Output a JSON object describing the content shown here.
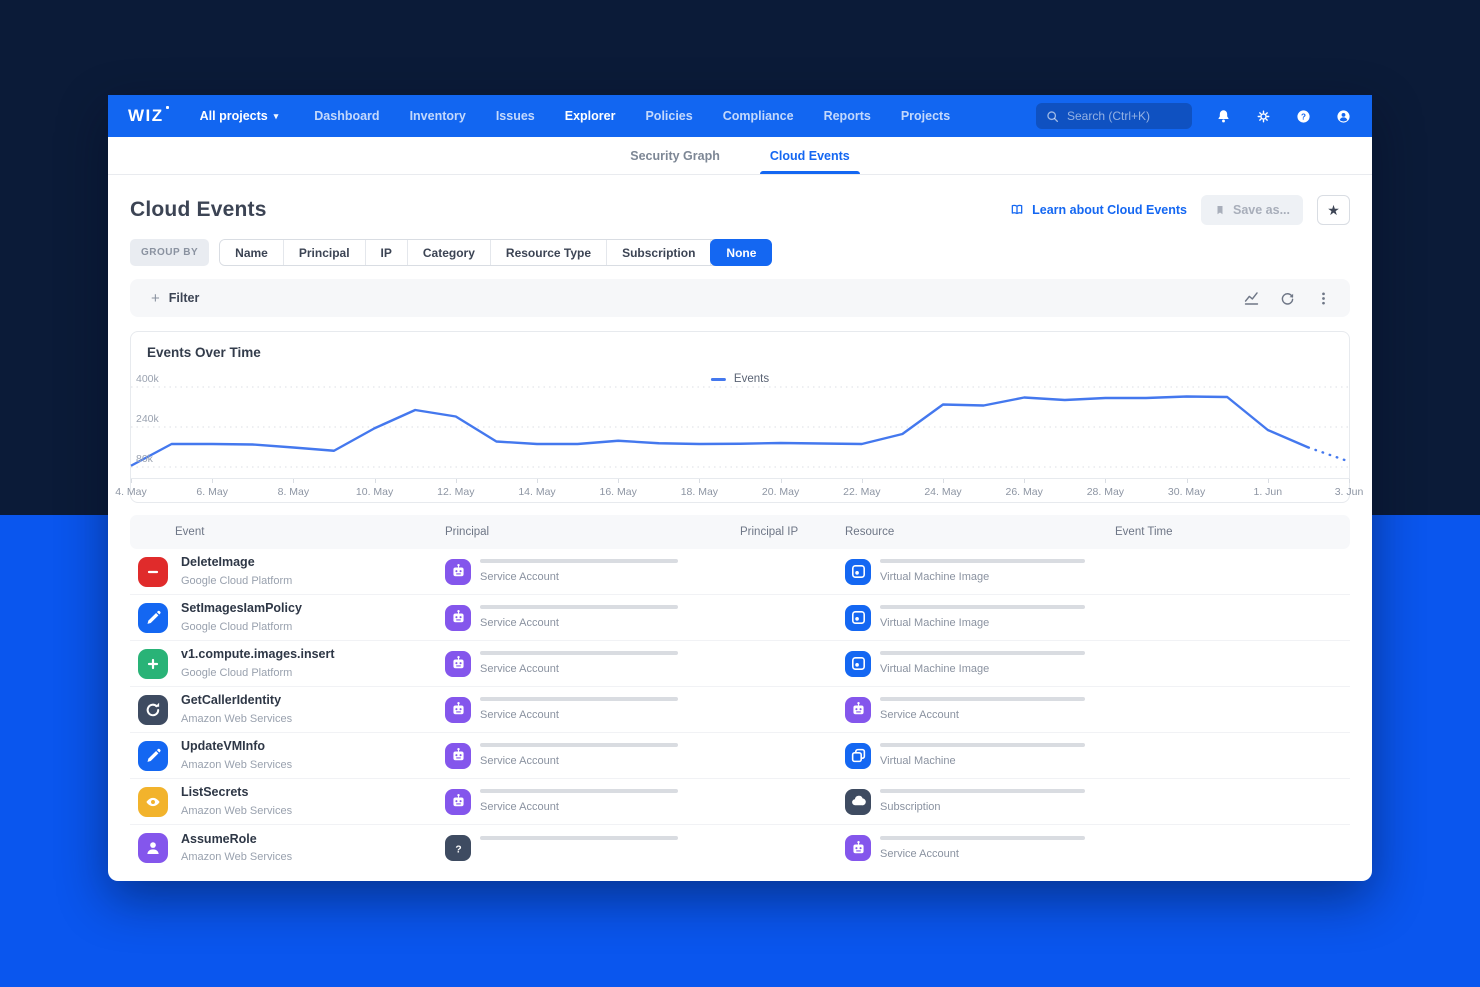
{
  "app": {
    "logo": "WIZ"
  },
  "nav": {
    "project_selector": "All projects",
    "items": [
      {
        "label": "Dashboard",
        "active": false
      },
      {
        "label": "Inventory",
        "active": false
      },
      {
        "label": "Issues",
        "active": false
      },
      {
        "label": "Explorer",
        "active": true
      },
      {
        "label": "Policies",
        "active": false
      },
      {
        "label": "Compliance",
        "active": false
      },
      {
        "label": "Reports",
        "active": false
      },
      {
        "label": "Projects",
        "active": false
      }
    ],
    "search_placeholder": "Search (Ctrl+K)",
    "right_icons": [
      "bell-icon",
      "gear-icon",
      "help-icon",
      "user-icon"
    ]
  },
  "tabs": {
    "items": [
      {
        "label": "Security Graph",
        "active": false
      },
      {
        "label": "Cloud Events",
        "active": true
      }
    ]
  },
  "header": {
    "title": "Cloud Events",
    "learn_link_label": "Learn about Cloud Events",
    "save_as_label": "Save as...",
    "favorite_icon": "star"
  },
  "group_by": {
    "label": "GROUP BY",
    "options": [
      {
        "label": "Name",
        "active": false
      },
      {
        "label": "Principal",
        "active": false
      },
      {
        "label": "IP",
        "active": false
      },
      {
        "label": "Category",
        "active": false
      },
      {
        "label": "Resource Type",
        "active": false
      },
      {
        "label": "Subscription",
        "active": false
      },
      {
        "label": "None",
        "active": true
      }
    ]
  },
  "filter_bar": {
    "add_filter_label": "Filter",
    "icons": [
      "chart-toggle-icon",
      "refresh-icon",
      "kebab-menu-icon"
    ]
  },
  "chart_data": {
    "type": "line",
    "title": "Events Over Time",
    "legend": [
      {
        "name": "Events",
        "color": "#4478ee"
      }
    ],
    "unit": "thousands of events",
    "x": [
      "4 May",
      "5 May",
      "6 May",
      "7 May",
      "8 May",
      "9 May",
      "10 May",
      "11 May",
      "12 May",
      "13 May",
      "14 May",
      "15 May",
      "16 May",
      "17 May",
      "18 May",
      "19 May",
      "20 May",
      "21 May",
      "22 May",
      "23 May",
      "24 May",
      "25 May",
      "26 May",
      "27 May",
      "28 May",
      "29 May",
      "30 May",
      "31 May",
      "1 Jun",
      "2 Jun",
      "3 Jun"
    ],
    "series": [
      {
        "name": "Events",
        "values": [
          85,
          172,
          172,
          170,
          158,
          145,
          235,
          308,
          282,
          182,
          172,
          172,
          185,
          175,
          172,
          173,
          176,
          174,
          172,
          212,
          330,
          326,
          358,
          348,
          356,
          356,
          362,
          360,
          228,
          158,
          102
        ]
      }
    ],
    "dashed_tail_points": 2,
    "x_tick_labels": [
      "4. May",
      "6. May",
      "8. May",
      "10. May",
      "12. May",
      "14. May",
      "16. May",
      "18. May",
      "20. May",
      "22. May",
      "24. May",
      "26. May",
      "28. May",
      "30. May",
      "1. Jun",
      "3. Jun"
    ],
    "y_ticks": [
      {
        "label": "400k",
        "value": 400
      },
      {
        "label": "240k",
        "value": 240
      },
      {
        "label": "80k",
        "value": 80
      }
    ],
    "ylim": [
      40,
      420
    ],
    "grid": "dotted-horizontal",
    "legend_position": "top-center"
  },
  "table": {
    "columns": [
      "Event",
      "Principal",
      "Principal IP",
      "Resource",
      "Event Time"
    ],
    "rows": [
      {
        "event": {
          "name": "DeleteImage",
          "provider": "Google Cloud Platform",
          "icon": "minus",
          "color": "#e02b2b"
        },
        "principal": {
          "icon": "service-account",
          "color": "#8456ec",
          "label": "Service Account"
        },
        "resource": {
          "icon": "vm-image",
          "color": "#1467f2",
          "label": "Virtual Machine Image"
        }
      },
      {
        "event": {
          "name": "SetImagesIamPolicy",
          "provider": "Google Cloud Platform",
          "icon": "pencil",
          "color": "#1467f2"
        },
        "principal": {
          "icon": "service-account",
          "color": "#8456ec",
          "label": "Service Account"
        },
        "resource": {
          "icon": "vm-image",
          "color": "#1467f2",
          "label": "Virtual Machine Image"
        }
      },
      {
        "event": {
          "name": "v1.compute.images.insert",
          "provider": "Google Cloud Platform",
          "icon": "plus",
          "color": "#29b377"
        },
        "principal": {
          "icon": "service-account",
          "color": "#8456ec",
          "label": "Service Account"
        },
        "resource": {
          "icon": "vm-image",
          "color": "#1467f2",
          "label": "Virtual Machine Image"
        }
      },
      {
        "event": {
          "name": "GetCallerIdentity",
          "provider": "Amazon Web Services",
          "icon": "identity",
          "color": "#3e4b61"
        },
        "principal": {
          "icon": "service-account",
          "color": "#8456ec",
          "label": "Service Account"
        },
        "resource": {
          "icon": "service-account",
          "color": "#8456ec",
          "label": "Service Account"
        }
      },
      {
        "event": {
          "name": "UpdateVMInfo",
          "provider": "Amazon Web Services",
          "icon": "pencil",
          "color": "#1467f2"
        },
        "principal": {
          "icon": "service-account",
          "color": "#8456ec",
          "label": "Service Account"
        },
        "resource": {
          "icon": "virtual-machine",
          "color": "#1467f2",
          "label": "Virtual Machine"
        }
      },
      {
        "event": {
          "name": "ListSecrets",
          "provider": "Amazon Web Services",
          "icon": "eye",
          "color": "#f2b32c"
        },
        "principal": {
          "icon": "service-account",
          "color": "#8456ec",
          "label": "Service Account"
        },
        "resource": {
          "icon": "subscription",
          "color": "#3e4b61",
          "label": "Subscription"
        }
      },
      {
        "event": {
          "name": "AssumeRole",
          "provider": "Amazon Web Services",
          "icon": "user",
          "color": "#8456ec"
        },
        "principal": {
          "icon": "unknown",
          "color": "#3e4b61",
          "label": ""
        },
        "resource": {
          "icon": "service-account",
          "color": "#8456ec",
          "label": "Service Account"
        }
      }
    ]
  },
  "colors": {
    "brand_blue": "#1266f1",
    "accent_blue": "#1467f2",
    "page_bg_top": "#0b1b38",
    "page_bg_bottom": "#0a56ee",
    "chart_line": "#4478ee",
    "danger_red": "#e02b2b",
    "success_green": "#29b377",
    "warning_amber": "#f2b32c",
    "principal_purple": "#8456ec",
    "slate_dark": "#3e4b61",
    "redacted_bar": "#d9dce1"
  }
}
